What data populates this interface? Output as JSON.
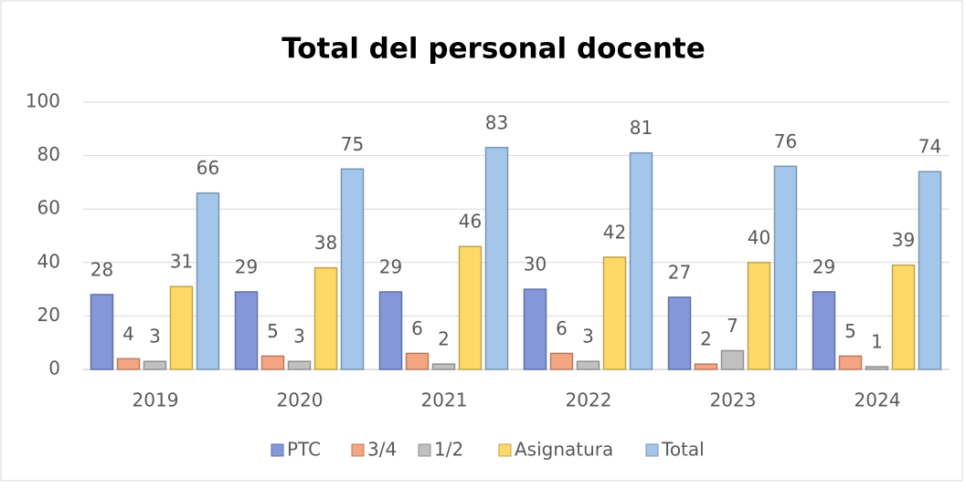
{
  "chart_data": {
    "type": "bar",
    "title": "Total del personal docente",
    "categories": [
      "2019",
      "2020",
      "2021",
      "2022",
      "2023",
      "2024"
    ],
    "series": [
      {
        "name": "PTC",
        "color": "#8497d9",
        "values": [
          28,
          29,
          29,
          30,
          27,
          29
        ]
      },
      {
        "name": "3/4",
        "color": "#f4a582",
        "values": [
          4,
          5,
          6,
          6,
          2,
          5
        ]
      },
      {
        "name": "1/2",
        "color": "#c0c0c0",
        "values": [
          3,
          3,
          2,
          3,
          7,
          1
        ]
      },
      {
        "name": "Asignatura",
        "color": "#ffd966",
        "values": [
          31,
          38,
          46,
          42,
          40,
          39
        ]
      },
      {
        "name": "Total",
        "color": "#a4c6ea",
        "values": [
          66,
          75,
          83,
          81,
          76,
          74
        ]
      }
    ],
    "ylim": [
      0,
      100
    ],
    "yticks": [
      0,
      20,
      40,
      60,
      80,
      100
    ],
    "grid": true,
    "legend": "bottom"
  }
}
